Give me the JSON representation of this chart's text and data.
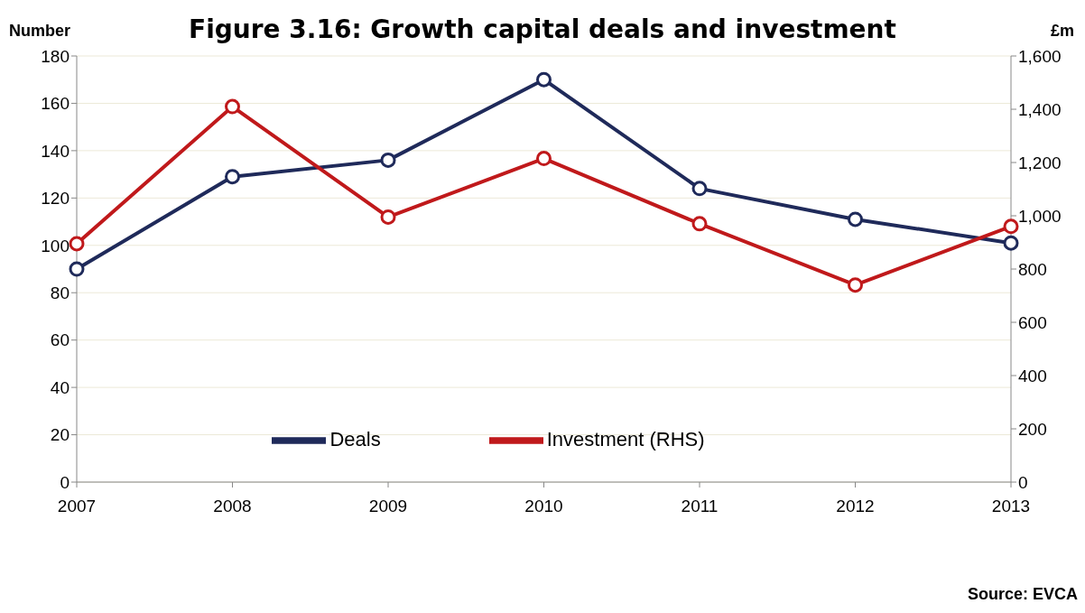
{
  "chart_data": {
    "type": "line",
    "title": "Figure 3.16: Growth capital deals and investment",
    "ylabel": "Number",
    "y2label": "£m",
    "categories": [
      "2007",
      "2008",
      "2009",
      "2010",
      "2011",
      "2012",
      "2013"
    ],
    "series": [
      {
        "name": "Deals",
        "color": "#1f2a5a",
        "values": [
          90,
          129,
          136,
          170,
          124,
          111,
          101
        ]
      },
      {
        "name": "Investment (RHS)",
        "color": "#c0191b",
        "axis": "y2",
        "values": [
          895,
          1410,
          995,
          1215,
          970,
          740,
          960
        ]
      }
    ],
    "ylim": [
      0,
      180
    ],
    "yticks": [
      0,
      20,
      40,
      60,
      80,
      100,
      120,
      140,
      160,
      180
    ],
    "y2lim": [
      0,
      1600
    ],
    "y2ticks": [
      0,
      {
        "value": 200,
        "label": "200"
      },
      {
        "value": 400,
        "label": "400"
      },
      {
        "value": 600,
        "label": "600"
      },
      {
        "value": 800,
        "label": "800"
      },
      {
        "value": 1000,
        "label": "1,000"
      },
      {
        "value": 1200,
        "label": "1,200"
      },
      {
        "value": 1400,
        "label": "1,400"
      },
      {
        "value": 1600,
        "label": "1,600"
      }
    ],
    "grid": "y",
    "legend": "bottom",
    "marker": "circle",
    "line_style": "solid",
    "annotations": [
      "Source: EVCA"
    ]
  }
}
